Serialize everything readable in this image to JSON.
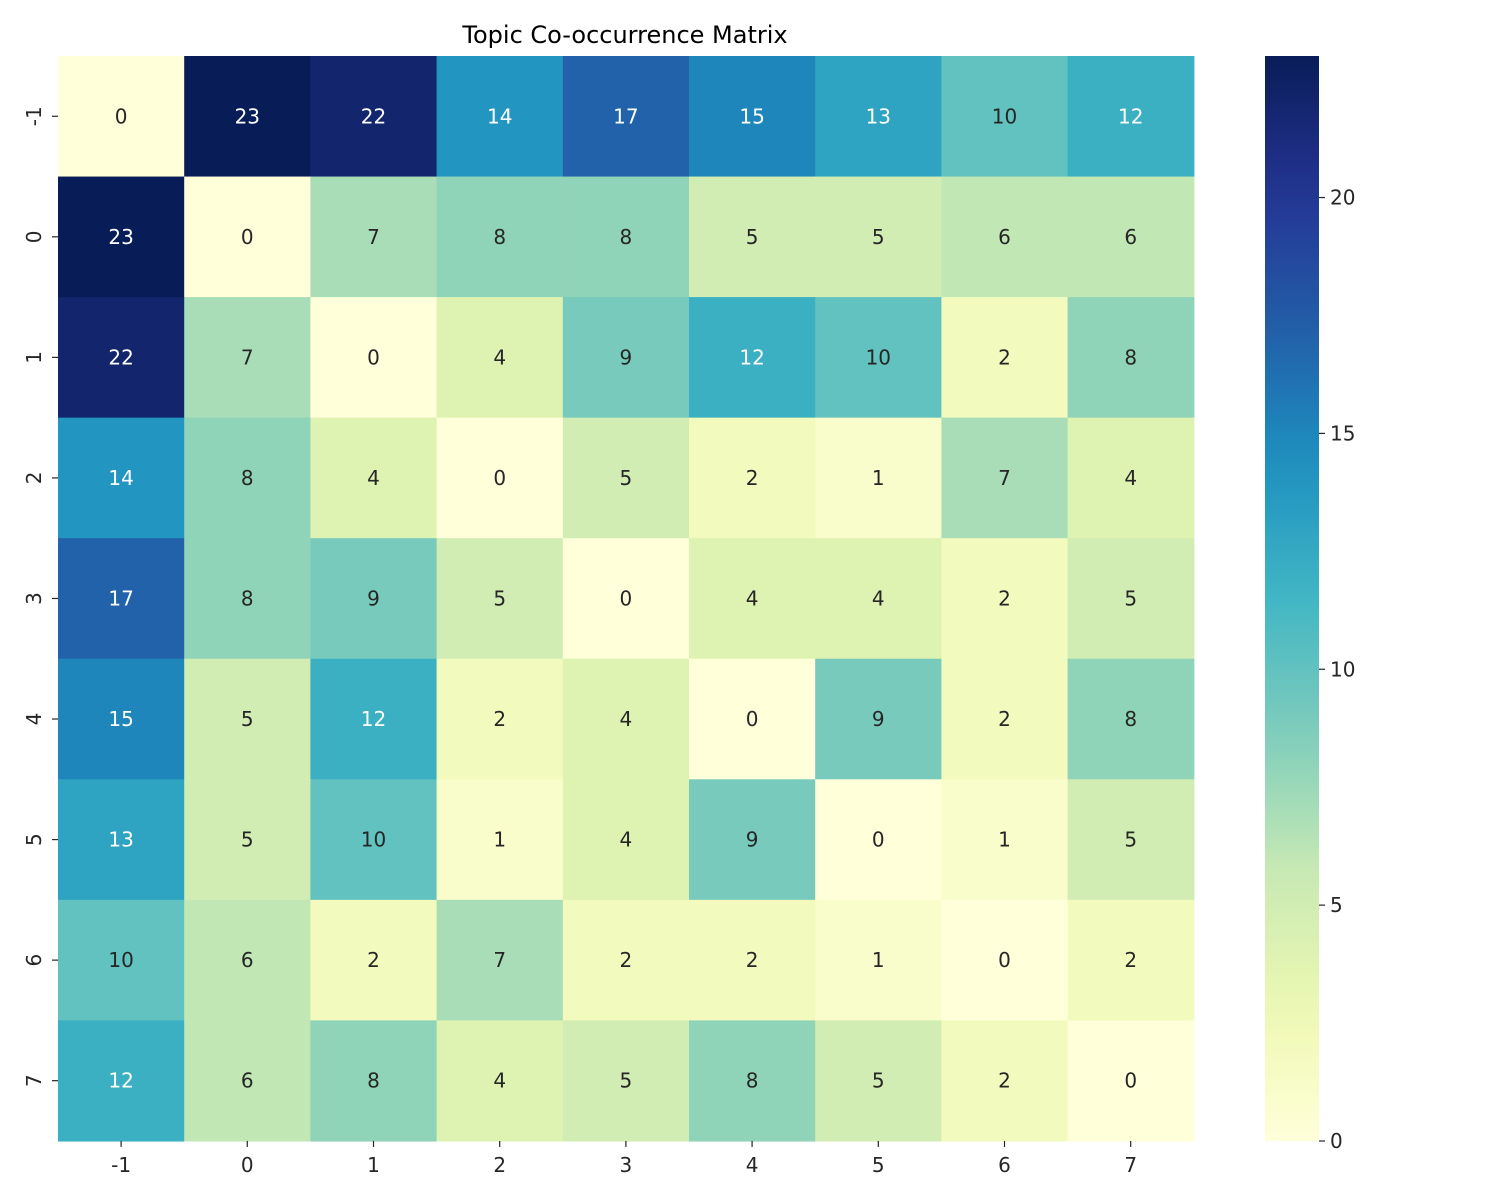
{
  "chart_data": {
    "type": "heatmap",
    "title": "Topic Co-occurrence Matrix",
    "xlabel": "",
    "ylabel": "",
    "x_labels": [
      "-1",
      "0",
      "1",
      "2",
      "3",
      "4",
      "5",
      "6",
      "7"
    ],
    "y_labels": [
      "-1",
      "0",
      "1",
      "2",
      "3",
      "4",
      "5",
      "6",
      "7"
    ],
    "values": [
      [
        0,
        23,
        22,
        14,
        17,
        15,
        13,
        10,
        12
      ],
      [
        23,
        0,
        7,
        8,
        8,
        5,
        5,
        6,
        6
      ],
      [
        22,
        7,
        0,
        4,
        9,
        12,
        10,
        2,
        8
      ],
      [
        14,
        8,
        4,
        0,
        5,
        2,
        1,
        7,
        4
      ],
      [
        17,
        8,
        9,
        5,
        0,
        4,
        4,
        2,
        5
      ],
      [
        15,
        5,
        12,
        2,
        4,
        0,
        9,
        2,
        8
      ],
      [
        13,
        5,
        10,
        1,
        4,
        9,
        0,
        1,
        5
      ],
      [
        10,
        6,
        2,
        7,
        2,
        2,
        1,
        0,
        2
      ],
      [
        12,
        6,
        8,
        4,
        5,
        8,
        5,
        2,
        0
      ]
    ],
    "colormap": "YlGnBu",
    "vmin": 0,
    "vmax": 23,
    "colorbar_ticks": [
      0,
      5,
      10,
      15,
      20
    ],
    "annotate": true
  }
}
